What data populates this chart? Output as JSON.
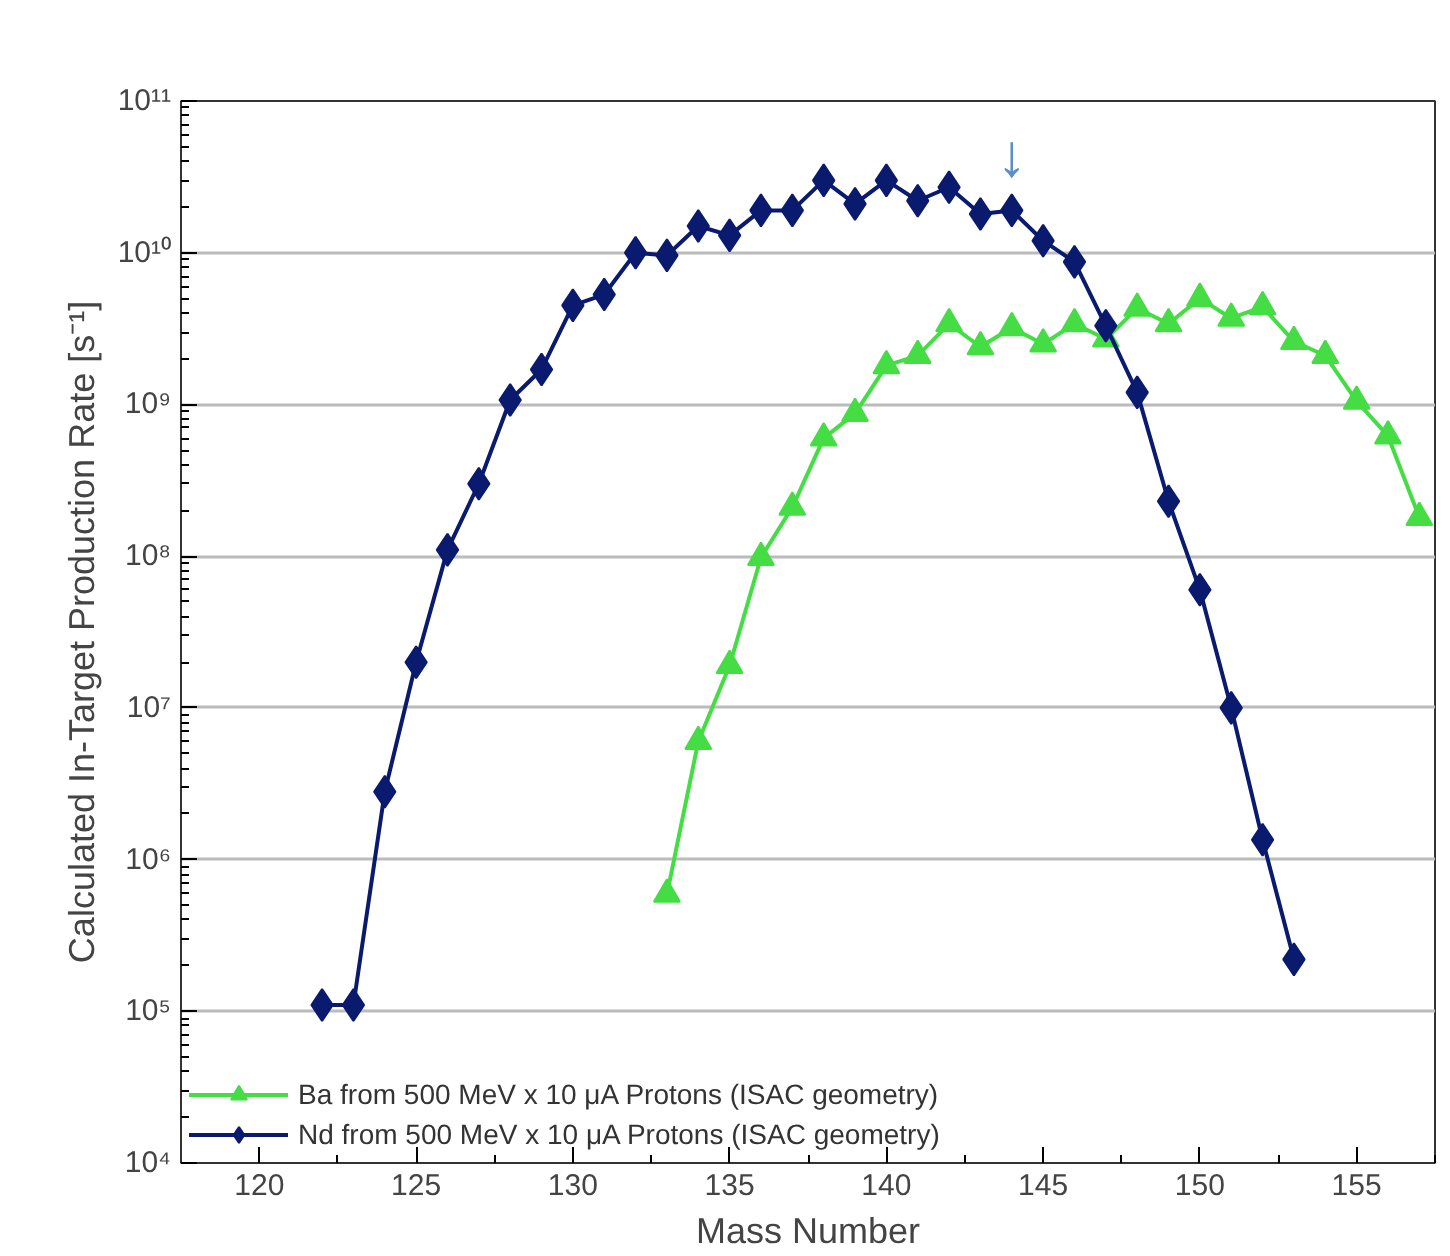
{
  "chart_data": {
    "type": "line",
    "xlabel": "Mass Number",
    "ylabel": "Calculated In-Target Production Rate [s⁻¹]",
    "log": "y",
    "grid": "y",
    "legend": "bottom left",
    "xlim": [
      117.5,
      157.5
    ],
    "xticks": [
      120,
      125,
      130,
      135,
      140,
      145,
      150,
      155
    ],
    "ylim": [
      10000,
      100000000000
    ],
    "yticks": [
      {
        "value": 10000,
        "label": "10⁴"
      },
      {
        "value": 100000,
        "label": "10⁵"
      },
      {
        "value": 1000000,
        "label": "10⁶"
      },
      {
        "value": 10000000,
        "label": "10⁷"
      },
      {
        "value": 100000000,
        "label": "10⁸"
      },
      {
        "value": 1000000000,
        "label": "10⁹"
      },
      {
        "value": 10000000000,
        "label": "10¹⁰"
      },
      {
        "value": 100000000000,
        "label": "10¹¹"
      }
    ],
    "annotations": [
      {
        "text": "↓",
        "x": 144,
        "y": 19000000000
      }
    ],
    "series": [
      {
        "name": "Ba from 500 MeV x 10 μA Protons (ISAC geometry)",
        "color": "#44dd44",
        "marker": "triangle",
        "x": [
          133,
          134,
          135,
          136,
          137,
          138,
          139,
          140,
          141,
          142,
          143,
          144,
          145,
          146,
          147,
          148,
          149,
          150,
          151,
          152,
          153,
          154,
          155,
          156,
          157
        ],
        "values": [
          590000,
          6000000,
          19000000,
          98000000,
          210000000,
          600000000,
          870000000,
          1800000000,
          2100000000,
          3400000000,
          2400000000,
          3200000000,
          2500000000,
          3400000000,
          2700000000,
          4300000000,
          3400000000,
          5000000000,
          3700000000,
          4400000000,
          2600000000,
          2100000000,
          1050000000,
          620000000,
          180000000
        ]
      },
      {
        "name": "Nd from 500 MeV x 10 μA Protons (ISAC geometry)",
        "color": "#0a1a6e",
        "marker": "diamond",
        "x": [
          122,
          123,
          124,
          125,
          126,
          127,
          128,
          129,
          130,
          131,
          132,
          133,
          134,
          135,
          136,
          137,
          138,
          139,
          140,
          141,
          142,
          143,
          144,
          145,
          146,
          147,
          148,
          149,
          150,
          151,
          152,
          153
        ],
        "values": [
          110000,
          110000,
          2800000,
          20000000,
          110000000,
          300000000,
          1070000000,
          1700000000,
          4500000000,
          5300000000,
          10000000000,
          9600000000,
          15000000000,
          13000000000,
          19000000000,
          19000000000,
          30000000000,
          21000000000,
          30000000000,
          22000000000,
          27000000000,
          18000000000,
          19000000000,
          12000000000,
          8700000000,
          3300000000,
          1200000000,
          230000000,
          60000000,
          10000000,
          1350000,
          220000
        ]
      }
    ]
  }
}
